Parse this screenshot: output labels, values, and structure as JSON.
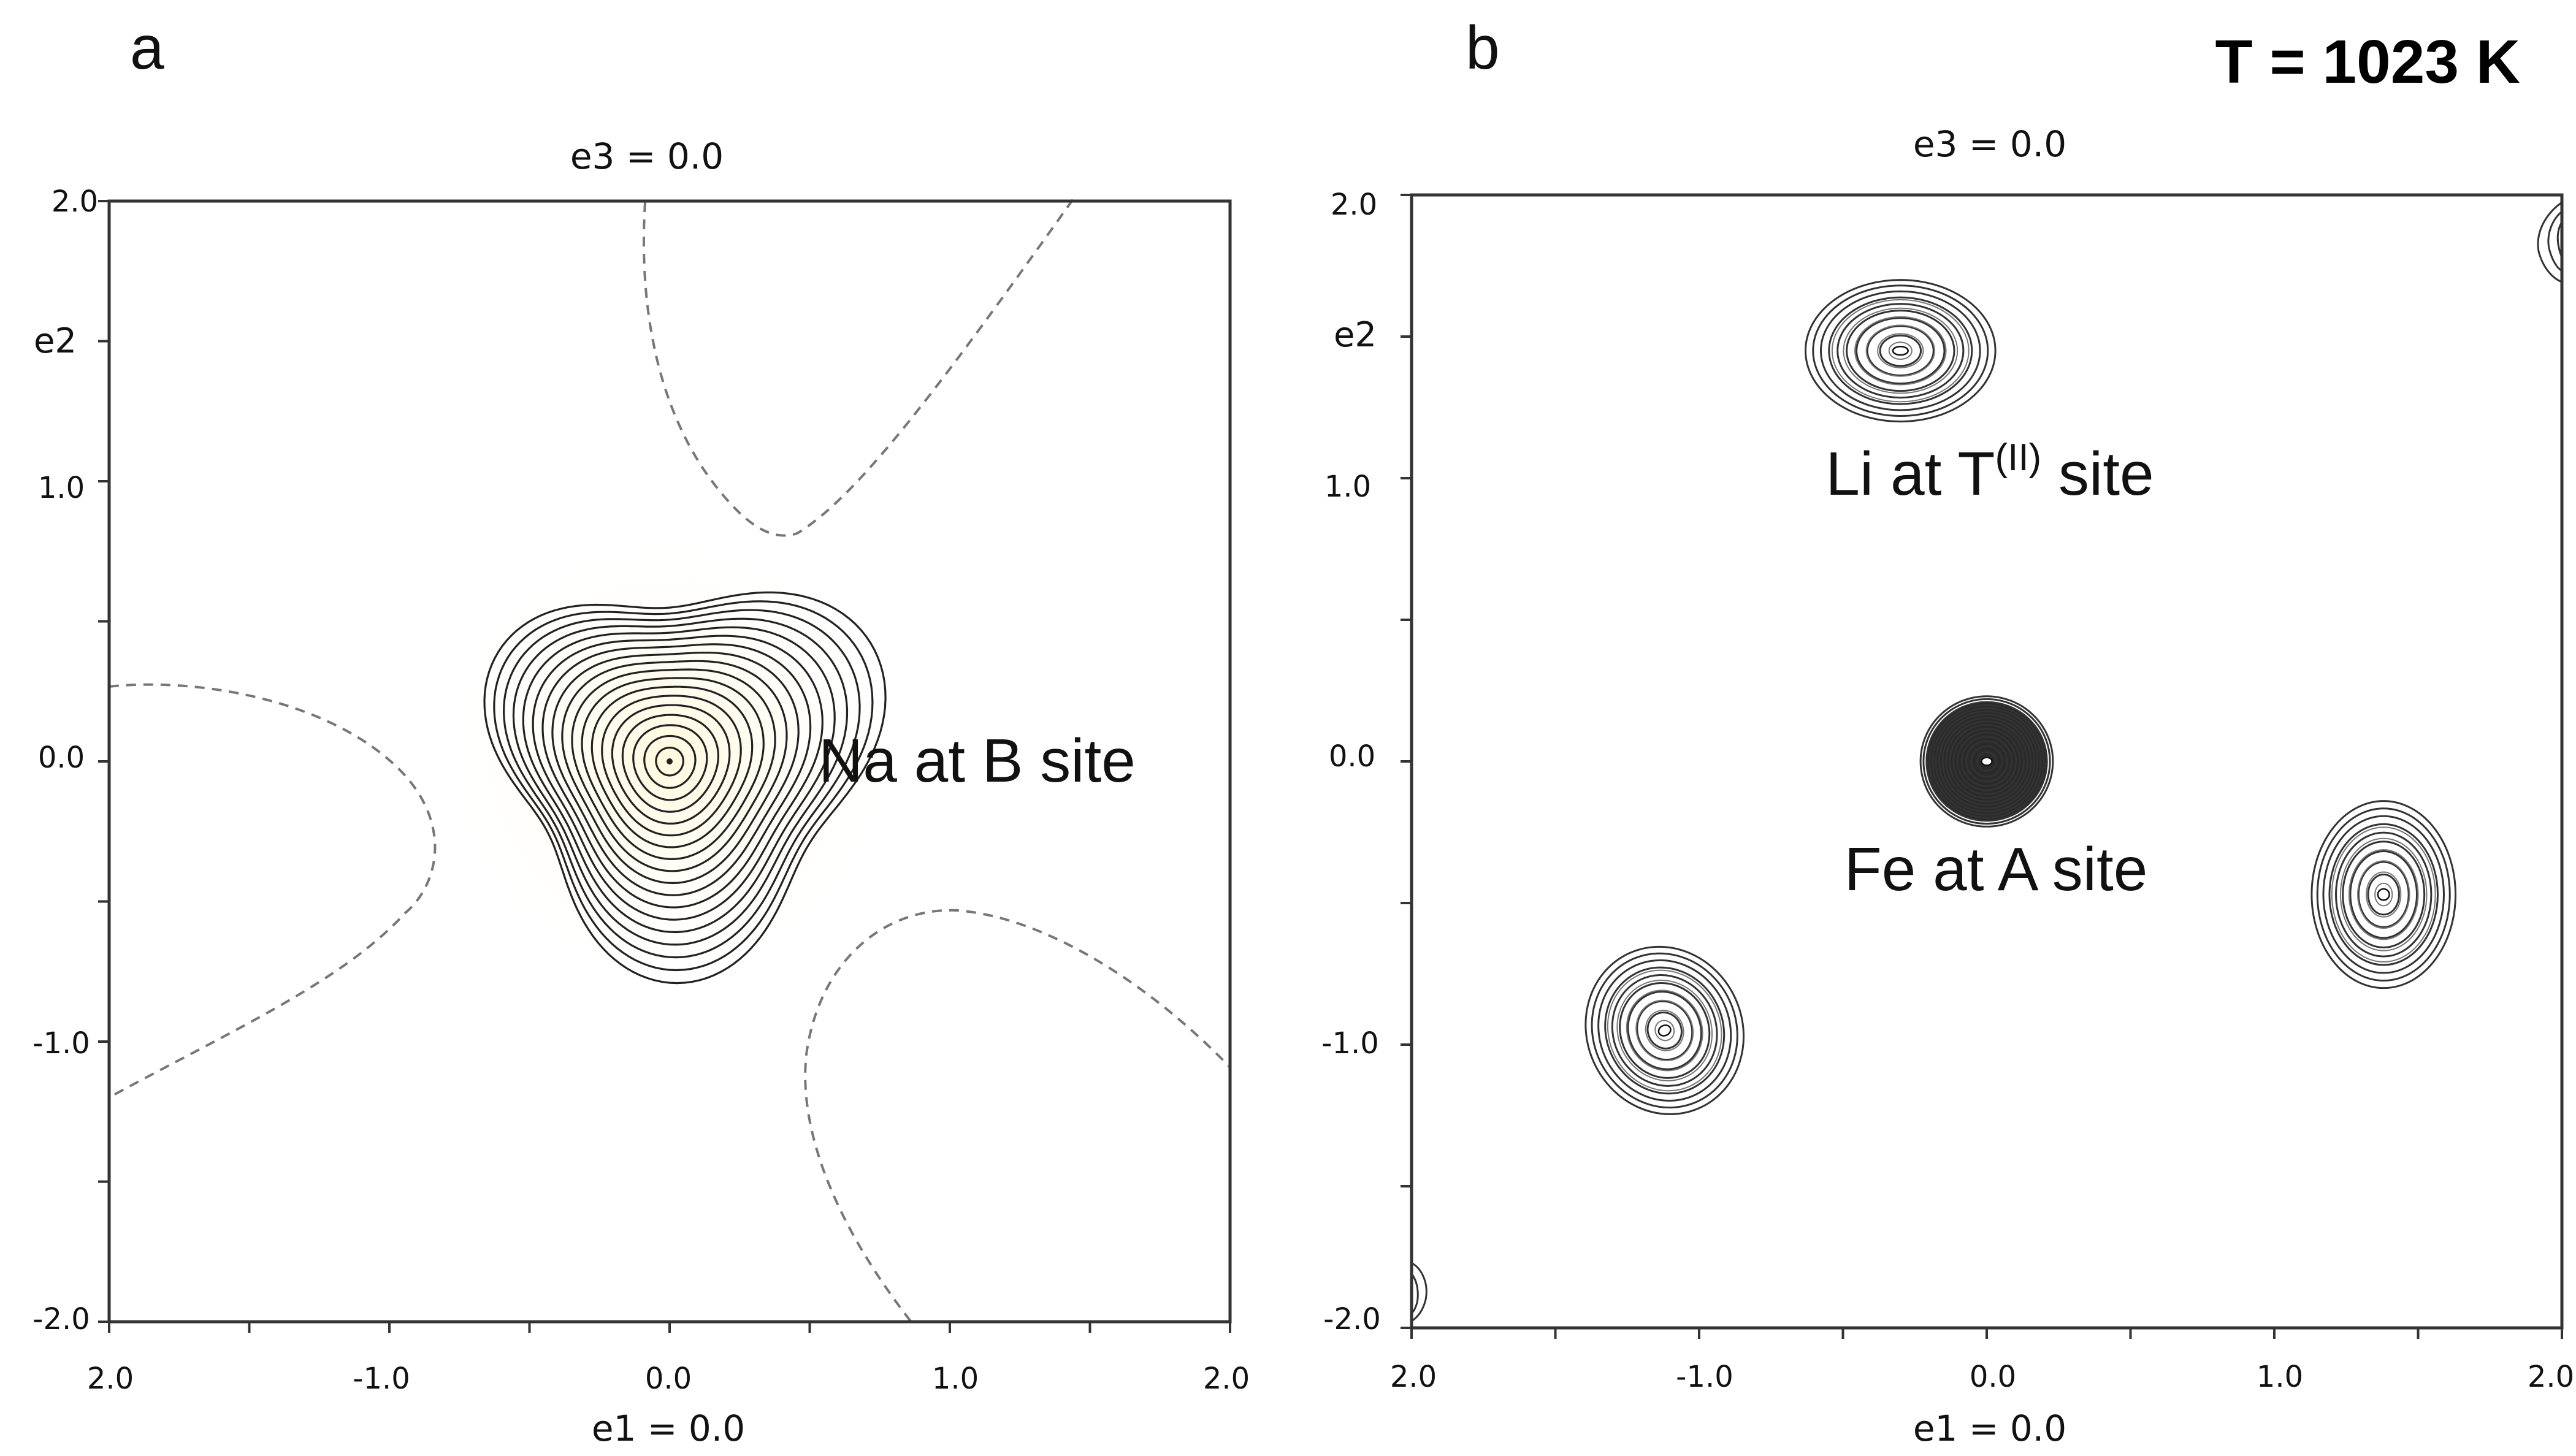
{
  "figure": {
    "temperature_label": "T = 1023 K"
  },
  "chart_data": [
    {
      "panel": "a",
      "type": "contour",
      "top_label": "e3 = 0.0",
      "xlabel": "e1 = 0.0",
      "ylabel": "e2",
      "xlim": [
        -2.0,
        2.0
      ],
      "ylim": [
        -2.0,
        2.0
      ],
      "x_tick_labels": [
        "2.0",
        "-1.0",
        "0.0",
        "1.0",
        "2.0"
      ],
      "y_tick_labels": [
        "2.0",
        "1.0",
        "0.0",
        "-1.0",
        "-2.0"
      ],
      "fill_color": "#e8bf00",
      "annotations": [
        {
          "text": "Na at B site",
          "x": 1.15,
          "y": 0.0
        }
      ],
      "peaks": [
        {
          "label": "Na at B site",
          "x": 0.0,
          "y": 0.0,
          "contour_levels": 18,
          "trigonal": true
        }
      ],
      "zero_contours": "dashed"
    },
    {
      "panel": "b",
      "type": "contour",
      "top_label": "e3 = 0.0",
      "xlabel": "e1 = 0.0",
      "ylabel": "e2",
      "xlim": [
        -2.0,
        2.0
      ],
      "ylim": [
        -2.0,
        2.0
      ],
      "x_tick_labels": [
        "2.0",
        "-1.0",
        "0.0",
        "1.0",
        "2.0"
      ],
      "y_tick_labels": [
        "2.0",
        "1.0",
        "0.0",
        "-1.0",
        "-2.0"
      ],
      "annotations": [
        {
          "text_main": "Li at T",
          "text_sup": "(II)",
          "text_tail": " site",
          "x": -0.1,
          "y": 1.0
        },
        {
          "text": "Fe at A site",
          "x": 0.02,
          "y": -0.4
        }
      ],
      "peaks": [
        {
          "label": "Li",
          "x": -0.3,
          "y": 1.45,
          "rx": 0.33,
          "ry": 0.25,
          "angle": 0,
          "levels": 9
        },
        {
          "label": "Fe",
          "x": 0.0,
          "y": 0.0,
          "rx": 0.23,
          "ry": 0.23,
          "angle": 0,
          "levels": 16
        },
        {
          "label": "Li",
          "x": 1.38,
          "y": -0.47,
          "rx": 0.25,
          "ry": 0.33,
          "angle": 0,
          "levels": 9
        },
        {
          "label": "Li",
          "x": -1.12,
          "y": -0.95,
          "rx": 0.27,
          "ry": 0.3,
          "angle": -25,
          "levels": 9
        }
      ]
    }
  ]
}
